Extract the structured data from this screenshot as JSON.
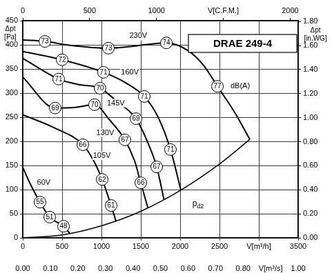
{
  "chart_data": {
    "type": "line",
    "title": "DRAE 249-4",
    "grid": true,
    "ylabel": [
      "Δpt",
      "[Pa]"
    ],
    "y2label": [
      "Δpt",
      "[in.WG]"
    ],
    "xlim": [
      0,
      3500
    ],
    "xticks": [
      0,
      500,
      1000,
      1500,
      2000,
      2500,
      {
        "value": 3000,
        "label": "V[m³/h]"
      },
      3500
    ],
    "x2lim": [
      0,
      1.0
    ],
    "x2ticks": [
      {
        "value": 0,
        "label": "0.00"
      },
      {
        "value": 0.1,
        "label": "0.10"
      },
      {
        "value": 0.2,
        "label": "0.20"
      },
      {
        "value": 0.3,
        "label": "0.30"
      },
      {
        "value": 0.4,
        "label": "0.40"
      },
      {
        "value": 0.5,
        "label": "0.50"
      },
      {
        "value": 0.6,
        "label": "0.60"
      },
      {
        "value": 0.7,
        "label": "0.70"
      },
      {
        "value": 0.8,
        "label": "0.80"
      },
      {
        "value": 0.9,
        "label": "V[m³/s]"
      },
      {
        "value": 1.0,
        "label": "1.00"
      }
    ],
    "x3lim": [
      0,
      2060
    ],
    "x3ticks": [
      0,
      500,
      1000,
      {
        "value": 1500,
        "label": "V[C.F.M.]"
      },
      2000
    ],
    "ylim": [
      0,
      450
    ],
    "yticks": [
      0,
      50,
      100,
      150,
      200,
      250,
      300,
      350,
      400,
      450
    ],
    "y2lim": [
      0,
      1.807
    ],
    "y2ticks": [
      {
        "value": 0,
        "label": "0.00"
      },
      {
        "value": 0.2,
        "label": "0.20"
      },
      {
        "value": 0.4,
        "label": "0.40"
      },
      {
        "value": 0.6,
        "label": "0.60"
      },
      {
        "value": 0.8,
        "label": "0.80"
      },
      {
        "value": 1.0,
        "label": "1.00"
      },
      {
        "value": 1.2,
        "label": "1.20"
      },
      {
        "value": 1.4,
        "label": "1.40"
      },
      {
        "value": 1.6,
        "label": "1.60"
      },
      {
        "value": 1.8,
        "label": "1.80"
      }
    ],
    "series": [
      {
        "name": "230V",
        "color": "#000000",
        "x": [
          0,
          281,
          600,
          1088,
          1450,
          1825,
          2100,
          2300,
          2474,
          2700,
          2886
        ],
        "values": [
          410,
          407,
          399,
          393,
          398,
          404,
          388,
          357,
          314,
          258,
          204
        ]
      },
      {
        "name": "160V",
        "color": "#000000",
        "x": [
          0,
          500,
          1026,
          1300,
          1544,
          1720,
          1877,
          2009
        ],
        "values": [
          386,
          369,
          343,
          322,
          293,
          250,
          183,
          99
        ]
      },
      {
        "name": "145V",
        "color": "#000000",
        "x": [
          0,
          456,
          700,
          982,
          1200,
          1439,
          1600,
          1702,
          1795
        ],
        "values": [
          372,
          329,
          318,
          310,
          282,
          247,
          193,
          147,
          79
        ]
      },
      {
        "name": "130V",
        "color": "#000000",
        "x": [
          0,
          412,
          650,
          912,
          1100,
          1298,
          1420,
          1500,
          1590
        ],
        "values": [
          333,
          269,
          270,
          276,
          245,
          203,
          160,
          114,
          62
        ]
      },
      {
        "name": "105V",
        "color": "#000000",
        "x": [
          0,
          400,
          763,
          900,
          1009,
          1123,
          1185
        ],
        "values": [
          255,
          228,
          193,
          160,
          121,
          67,
          34
        ]
      },
      {
        "name": "60V",
        "color": "#000000",
        "x": [
          0,
          100,
          219,
          342,
          518,
          600
        ],
        "values": [
          146,
          110,
          74,
          43,
          24,
          9
        ]
      },
      {
        "name": "pd2",
        "color": "#000000",
        "x": [
          0,
          500,
          1000,
          1500,
          2000,
          2500,
          2886
        ],
        "values": [
          0,
          6,
          25,
          55,
          98,
          153,
          204
        ]
      }
    ],
    "db_markers": [
      {
        "x": 281,
        "y": 407,
        "db": 73
      },
      {
        "x": 1088,
        "y": 393,
        "db": 73
      },
      {
        "x": 1825,
        "y": 404,
        "db": 74
      },
      {
        "x": 2474,
        "y": 314,
        "db": 77
      },
      {
        "x": 500,
        "y": 369,
        "db": 72
      },
      {
        "x": 1026,
        "y": 343,
        "db": 71
      },
      {
        "x": 1544,
        "y": 293,
        "db": 71
      },
      {
        "x": 1877,
        "y": 183,
        "db": 71
      },
      {
        "x": 456,
        "y": 329,
        "db": 71
      },
      {
        "x": 982,
        "y": 310,
        "db": 70
      },
      {
        "x": 1439,
        "y": 247,
        "db": 69
      },
      {
        "x": 1702,
        "y": 147,
        "db": 67
      },
      {
        "x": 412,
        "y": 269,
        "db": 69
      },
      {
        "x": 912,
        "y": 276,
        "db": 70
      },
      {
        "x": 1298,
        "y": 203,
        "db": 67
      },
      {
        "x": 1500,
        "y": 114,
        "db": 66
      },
      {
        "x": 763,
        "y": 193,
        "db": 66
      },
      {
        "x": 1009,
        "y": 121,
        "db": 62
      },
      {
        "x": 1123,
        "y": 67,
        "db": 61
      },
      {
        "x": 219,
        "y": 74,
        "db": 55
      },
      {
        "x": 342,
        "y": 43,
        "db": 51
      },
      {
        "x": 518,
        "y": 24,
        "db": 48
      }
    ],
    "annotations": [
      {
        "x": 2640,
        "y": 314,
        "text": "dB(A)"
      }
    ]
  }
}
